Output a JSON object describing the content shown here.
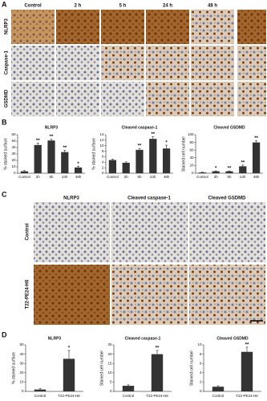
{
  "panel_labels": [
    "A",
    "B",
    "C",
    "D"
  ],
  "panel_a": {
    "columns": [
      "Control",
      "2 h",
      "5 h",
      "24 h",
      "48 h"
    ],
    "rows": [
      "NLRP3",
      "Caspase-1",
      "GSDMD"
    ]
  },
  "panel_c": {
    "columns": [
      "NLRP3",
      "Cleaved caspase-1",
      "Cleaved GSDMD"
    ],
    "rows": [
      "Control",
      "T22-PE24-H6"
    ]
  },
  "chart_data": [
    {
      "type": "bar",
      "title": "NLRP3",
      "y_label": "% stained surface",
      "categories": [
        "Control",
        "2h",
        "5h",
        "24h",
        "48h"
      ],
      "values": [
        3,
        44,
        51,
        33,
        9
      ],
      "errors": [
        1,
        3,
        2,
        3,
        2
      ],
      "annotations": [
        null,
        "**",
        "**",
        "**",
        "*"
      ],
      "color": "#333333",
      "ylim": [
        0,
        60
      ],
      "yticks": [
        0,
        10,
        20,
        30,
        40,
        50,
        60
      ]
    },
    {
      "type": "bar",
      "title": "Cleaved caspase-1",
      "y_label": "% stained surface",
      "categories": [
        "Control",
        "2h",
        "5h",
        "24h",
        "48h"
      ],
      "values": [
        4.8,
        3.8,
        8.5,
        12.5,
        9
      ],
      "errors": [
        0.3,
        0.3,
        0.5,
        0.8,
        1.2
      ],
      "annotations": [
        null,
        null,
        "**",
        "**",
        "*"
      ],
      "color": "#333333",
      "ylim": [
        0,
        14
      ],
      "yticks": [
        0,
        2,
        4,
        6,
        8,
        10,
        12,
        14
      ]
    },
    {
      "type": "bar",
      "title": "Cleaved GSDMD",
      "y_label": "Stained cell number",
      "categories": [
        "Control",
        "2h",
        "5h",
        "24h",
        "48h"
      ],
      "values": [
        2,
        5,
        5,
        18,
        80
      ],
      "errors": [
        1,
        1,
        1,
        3,
        5
      ],
      "annotations": [
        null,
        "*",
        "**",
        "**",
        "**"
      ],
      "color": "#333333",
      "ylim": [
        0,
        100
      ],
      "yticks": [
        0,
        20,
        40,
        60,
        80,
        100
      ]
    },
    {
      "type": "bar",
      "title": "NLRP3",
      "y_label": "% stained surface",
      "categories": [
        "Control",
        "T22-PE24-H6"
      ],
      "values": [
        2,
        35
      ],
      "errors": [
        1,
        9
      ],
      "annotations": [
        null,
        "*"
      ],
      "color": "#333333",
      "ylim": [
        0,
        50
      ],
      "yticks": [
        0,
        10,
        20,
        30,
        40,
        50
      ]
    },
    {
      "type": "bar",
      "title": "Cleaved caspase-1",
      "y_label": "Stained cell number",
      "categories": [
        "Control",
        "T22-PE24-H6"
      ],
      "values": [
        3,
        20
      ],
      "errors": [
        0.5,
        2
      ],
      "annotations": [
        null,
        "**"
      ],
      "color": "#333333",
      "ylim": [
        0,
        25
      ],
      "yticks": [
        0,
        5,
        10,
        15,
        20,
        25
      ]
    },
    {
      "type": "bar",
      "title": "Cleaved GSDMD",
      "y_label": "Stained cell number",
      "categories": [
        "Control",
        "T22-PE24-H6"
      ],
      "values": [
        1,
        8.5
      ],
      "errors": [
        0.2,
        1
      ],
      "annotations": [
        null,
        "**"
      ],
      "color": "#333333",
      "ylim": [
        0,
        10
      ],
      "yticks": [
        0,
        2,
        4,
        6,
        8,
        10
      ]
    }
  ]
}
